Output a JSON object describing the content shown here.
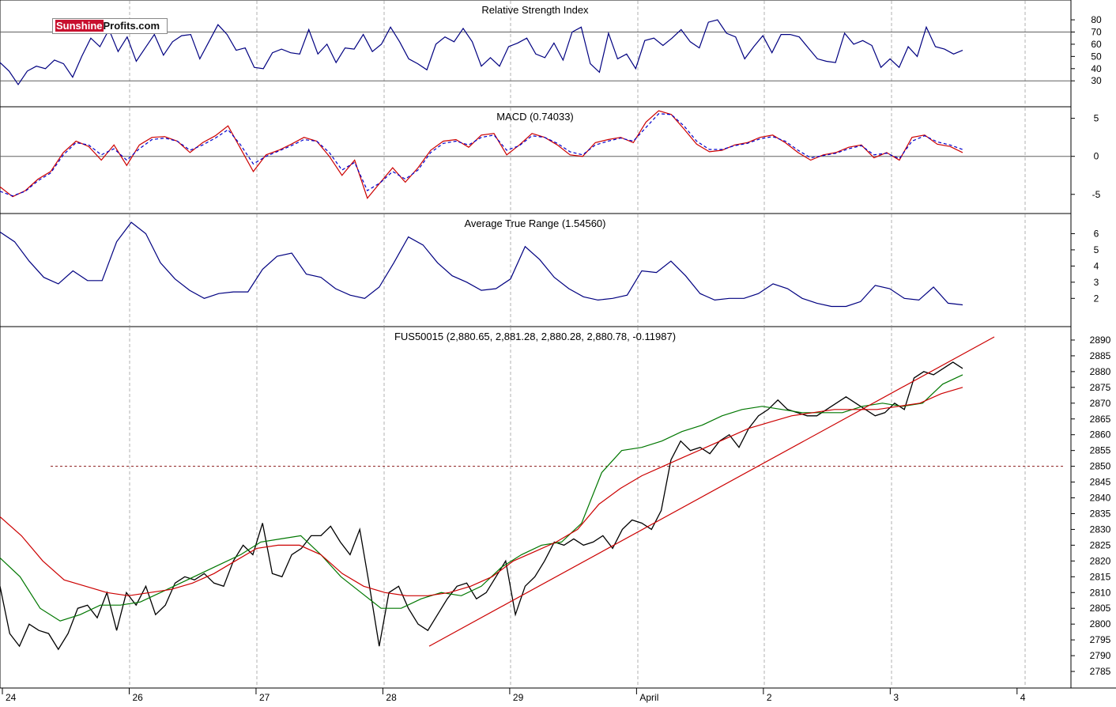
{
  "logo": {
    "part1": "Sunshine",
    "part2": "Profits.com"
  },
  "chart_data": [
    {
      "type": "line",
      "title": "Relative Strength Index",
      "ylim": [
        12,
        93
      ],
      "y_ticks": [
        80,
        70,
        60,
        50,
        40,
        30
      ],
      "reference_lines": [
        70,
        30
      ],
      "series": [
        {
          "color": "#000080",
          "values": [
            45,
            38,
            27,
            38,
            42,
            40,
            47,
            44,
            33,
            50,
            65,
            58,
            72,
            54,
            66,
            46,
            57,
            68,
            51,
            62,
            67,
            68,
            48,
            62,
            76,
            68,
            55,
            57,
            41,
            40,
            53,
            56,
            53,
            52,
            72,
            52,
            60,
            45,
            57,
            56,
            68,
            54,
            60,
            74,
            62,
            48,
            44,
            39,
            60,
            66,
            62,
            73,
            62,
            42,
            49,
            42,
            58,
            61,
            65,
            52,
            49,
            61,
            47,
            70,
            74,
            44,
            37,
            69,
            48,
            52,
            40,
            63,
            65,
            59,
            65,
            72,
            62,
            57,
            78,
            80,
            69,
            66,
            48,
            58,
            67,
            53,
            68,
            68,
            66,
            57,
            48,
            46,
            45,
            69,
            60,
            63,
            59,
            41,
            48,
            41,
            58,
            50,
            74,
            58,
            56,
            52,
            55
          ]
        }
      ],
      "x_start": 0,
      "x_step": 0.69
    },
    {
      "type": "line",
      "title": "MACD (0.74033)",
      "ylim": [
        -7,
        6
      ],
      "y_ticks": [
        5,
        0,
        -5
      ],
      "reference_lines": [
        0
      ],
      "series": [
        {
          "name": "MACD",
          "color": "#cc0000",
          "values": [
            -4,
            -5.3,
            -4.5,
            -3,
            -2,
            0.5,
            2,
            1.3,
            -0.5,
            1.5,
            -1.2,
            1.5,
            2.5,
            2.6,
            2,
            0.5,
            1.8,
            2.7,
            4,
            1,
            -2,
            0.2,
            0.8,
            1.6,
            2.5,
            2,
            0,
            -2.5,
            -0.5,
            -5.5,
            -3.5,
            -1.5,
            -3.4,
            -1.5,
            0.8,
            2,
            2.2,
            1.2,
            2.8,
            3,
            0.2,
            1.5,
            3,
            2.5,
            1.5,
            0.2,
            0,
            1.8,
            2.2,
            2.5,
            1.8,
            4.5,
            6,
            5.5,
            3.6,
            1.6,
            0.6,
            0.8,
            1.5,
            1.8,
            2.5,
            2.8,
            1.8,
            0.5,
            -0.5,
            0.2,
            0.5,
            1.2,
            1.5,
            -0.2,
            0.5,
            -0.5,
            2.5,
            2.8,
            1.6,
            1.3,
            0.5
          ]
        },
        {
          "name": "Signal",
          "color": "#0000cc",
          "values": [
            -4.6,
            -5.2,
            -4.6,
            -3.2,
            -2.2,
            0.2,
            1.8,
            1.5,
            0.2,
            1,
            -0.5,
            1,
            2.2,
            2.4,
            2,
            0.8,
            1.5,
            2.4,
            3.5,
            1.5,
            -1,
            0,
            0.7,
            1.4,
            2.2,
            2,
            0.5,
            -1.8,
            -0.8,
            -4.5,
            -3.5,
            -2,
            -3,
            -1.8,
            0.5,
            1.7,
            2,
            1.5,
            2.5,
            2.8,
            0.8,
            1.4,
            2.7,
            2.5,
            1.7,
            0.6,
            0.2,
            1.5,
            2,
            2.4,
            2,
            3.8,
            5.6,
            5.5,
            4,
            2,
            0.9,
            0.9,
            1.4,
            1.7,
            2.3,
            2.6,
            2,
            0.8,
            -0.2,
            0.1,
            0.4,
            1,
            1.4,
            0.2,
            0.4,
            -0.3,
            2,
            2.7,
            1.9,
            1.5,
            0.9
          ]
        }
      ],
      "x_start": 0,
      "x_step": 1.0
    },
    {
      "type": "line",
      "title": "Average True Range (1.54560)",
      "ylim": [
        0.5,
        7
      ],
      "y_ticks": [
        6,
        5,
        4,
        3,
        2
      ],
      "series": [
        {
          "color": "#000080",
          "values": [
            6.1,
            5.5,
            4.3,
            3.3,
            2.9,
            3.7,
            3.1,
            3.1,
            5.5,
            6.7,
            6,
            4.2,
            3.2,
            2.5,
            2,
            2.3,
            2.4,
            2.4,
            3.8,
            4.6,
            4.8,
            3.5,
            3.3,
            2.6,
            2.2,
            2,
            2.7,
            4.2,
            5.8,
            5.3,
            4.2,
            3.4,
            3,
            2.5,
            2.6,
            3.2,
            5.2,
            4.4,
            3.3,
            2.6,
            2.1,
            1.9,
            2,
            2.2,
            3.7,
            3.6,
            4.3,
            3.4,
            2.3,
            1.9,
            2,
            2,
            2.3,
            2.9,
            2.6,
            2,
            1.7,
            1.5,
            1.5,
            1.8,
            2.8,
            2.6,
            2,
            1.9,
            2.7,
            1.7,
            1.6
          ]
        }
      ],
      "x_start": 0,
      "x_step": 1.14
    },
    {
      "type": "line",
      "title": "FUS50015 (2,880.65, 2,881.28, 2,880.28, 2,880.78, -0.11987)",
      "ylim": [
        2781,
        2893
      ],
      "y_ticks": [
        2890,
        2885,
        2880,
        2875,
        2870,
        2865,
        2860,
        2855,
        2850,
        2845,
        2840,
        2835,
        2830,
        2825,
        2820,
        2815,
        2810,
        2805,
        2800,
        2795,
        2790,
        2785
      ],
      "x_labels": [
        {
          "label": "24",
          "x": 0
        },
        {
          "label": "26",
          "x": 10
        },
        {
          "label": "27",
          "x": 20
        },
        {
          "label": "28",
          "x": 30
        },
        {
          "label": "29",
          "x": 40
        },
        {
          "label": "April",
          "x": 50
        },
        {
          "label": "2",
          "x": 60
        },
        {
          "label": "3",
          "x": 70
        },
        {
          "label": "4",
          "x": 80
        }
      ],
      "x_range": [
        0,
        84
      ],
      "horizontal_level": 2850,
      "series": [
        {
          "name": "Price",
          "color": "#000000",
          "values": [
            2812,
            2797,
            2793,
            2800,
            2798,
            2797,
            2792,
            2797,
            2805,
            2806,
            2802,
            2810,
            2798,
            2810,
            2806,
            2812,
            2803,
            2806,
            2813,
            2815,
            2814,
            2816,
            2813,
            2812,
            2820,
            2825,
            2822,
            2832,
            2816,
            2815,
            2822,
            2824,
            2828,
            2828,
            2831,
            2826,
            2822,
            2830,
            2812,
            2793,
            2810,
            2812,
            2805,
            2800,
            2798,
            2803,
            2808,
            2812,
            2813,
            2808,
            2810,
            2815,
            2820,
            2803,
            2812,
            2815,
            2820,
            2826,
            2825,
            2827,
            2825,
            2826,
            2828,
            2824,
            2830,
            2833,
            2832,
            2830,
            2836,
            2852,
            2858,
            2855,
            2856,
            2854,
            2858,
            2860,
            2856,
            2862,
            2866,
            2868,
            2871,
            2868,
            2867,
            2866,
            2866,
            2868,
            2870,
            2872,
            2870,
            2868,
            2866,
            2867,
            2870,
            2868,
            2878,
            2880,
            2879,
            2881,
            2883,
            2881
          ]
        },
        {
          "name": "MA short",
          "color": "#007700",
          "values": [
            2821,
            2815,
            2805,
            2801,
            2803,
            2806,
            2806,
            2807,
            2810,
            2813,
            2816,
            2819,
            2822,
            2826,
            2827,
            2828,
            2822,
            2815,
            2810,
            2805,
            2805,
            2808,
            2810,
            2809,
            2812,
            2818,
            2822,
            2825,
            2826,
            2832,
            2848,
            2855,
            2856,
            2858,
            2861,
            2863,
            2866,
            2868,
            2869,
            2868,
            2867,
            2867,
            2867,
            2869,
            2870,
            2869,
            2870,
            2876,
            2879
          ]
        },
        {
          "name": "MA long",
          "color": "#cc0000",
          "values": [
            2834,
            2828,
            2820,
            2814,
            2812,
            2810,
            2809,
            2810,
            2811,
            2813,
            2816,
            2820,
            2824,
            2825,
            2825,
            2822,
            2816,
            2812,
            2810,
            2809,
            2809,
            2810,
            2812,
            2815,
            2820,
            2823,
            2826,
            2830,
            2838,
            2843,
            2847,
            2850,
            2853,
            2856,
            2859,
            2862,
            2864,
            2866,
            2867,
            2868,
            2868,
            2868,
            2869,
            2870,
            2873,
            2875
          ]
        },
        {
          "name": "Trend line",
          "color": "#cc0000",
          "values": [
            2793,
            2891
          ]
        }
      ]
    }
  ]
}
